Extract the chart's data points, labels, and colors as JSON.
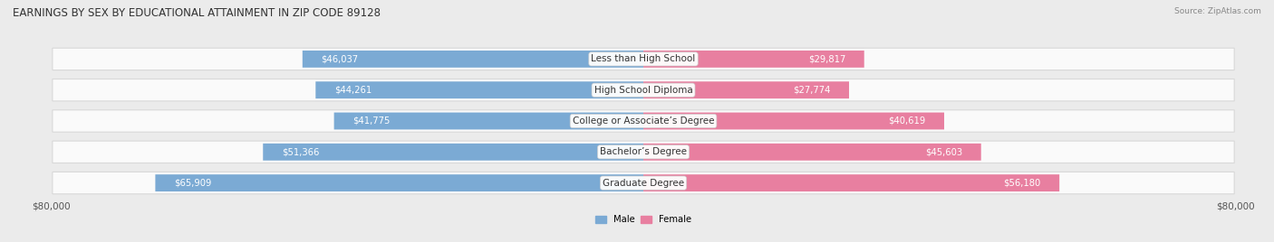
{
  "title": "EARNINGS BY SEX BY EDUCATIONAL ATTAINMENT IN ZIP CODE 89128",
  "source": "Source: ZipAtlas.com",
  "categories": [
    "Less than High School",
    "High School Diploma",
    "College or Associate’s Degree",
    "Bachelor’s Degree",
    "Graduate Degree"
  ],
  "male_values": [
    46037,
    44261,
    41775,
    51366,
    65909
  ],
  "female_values": [
    29817,
    27774,
    40619,
    45603,
    56180
  ],
  "male_color": "#7BAAD4",
  "female_color": "#E87FA0",
  "max_value": 80000,
  "bg_color": "#EBEBEB",
  "row_bg_color": "#FAFAFA",
  "row_edge_color": "#D8D8D8",
  "title_fontsize": 8.5,
  "label_fontsize": 7.2,
  "tick_fontsize": 7.5,
  "value_fontsize": 7.2,
  "cat_fontsize": 7.5
}
